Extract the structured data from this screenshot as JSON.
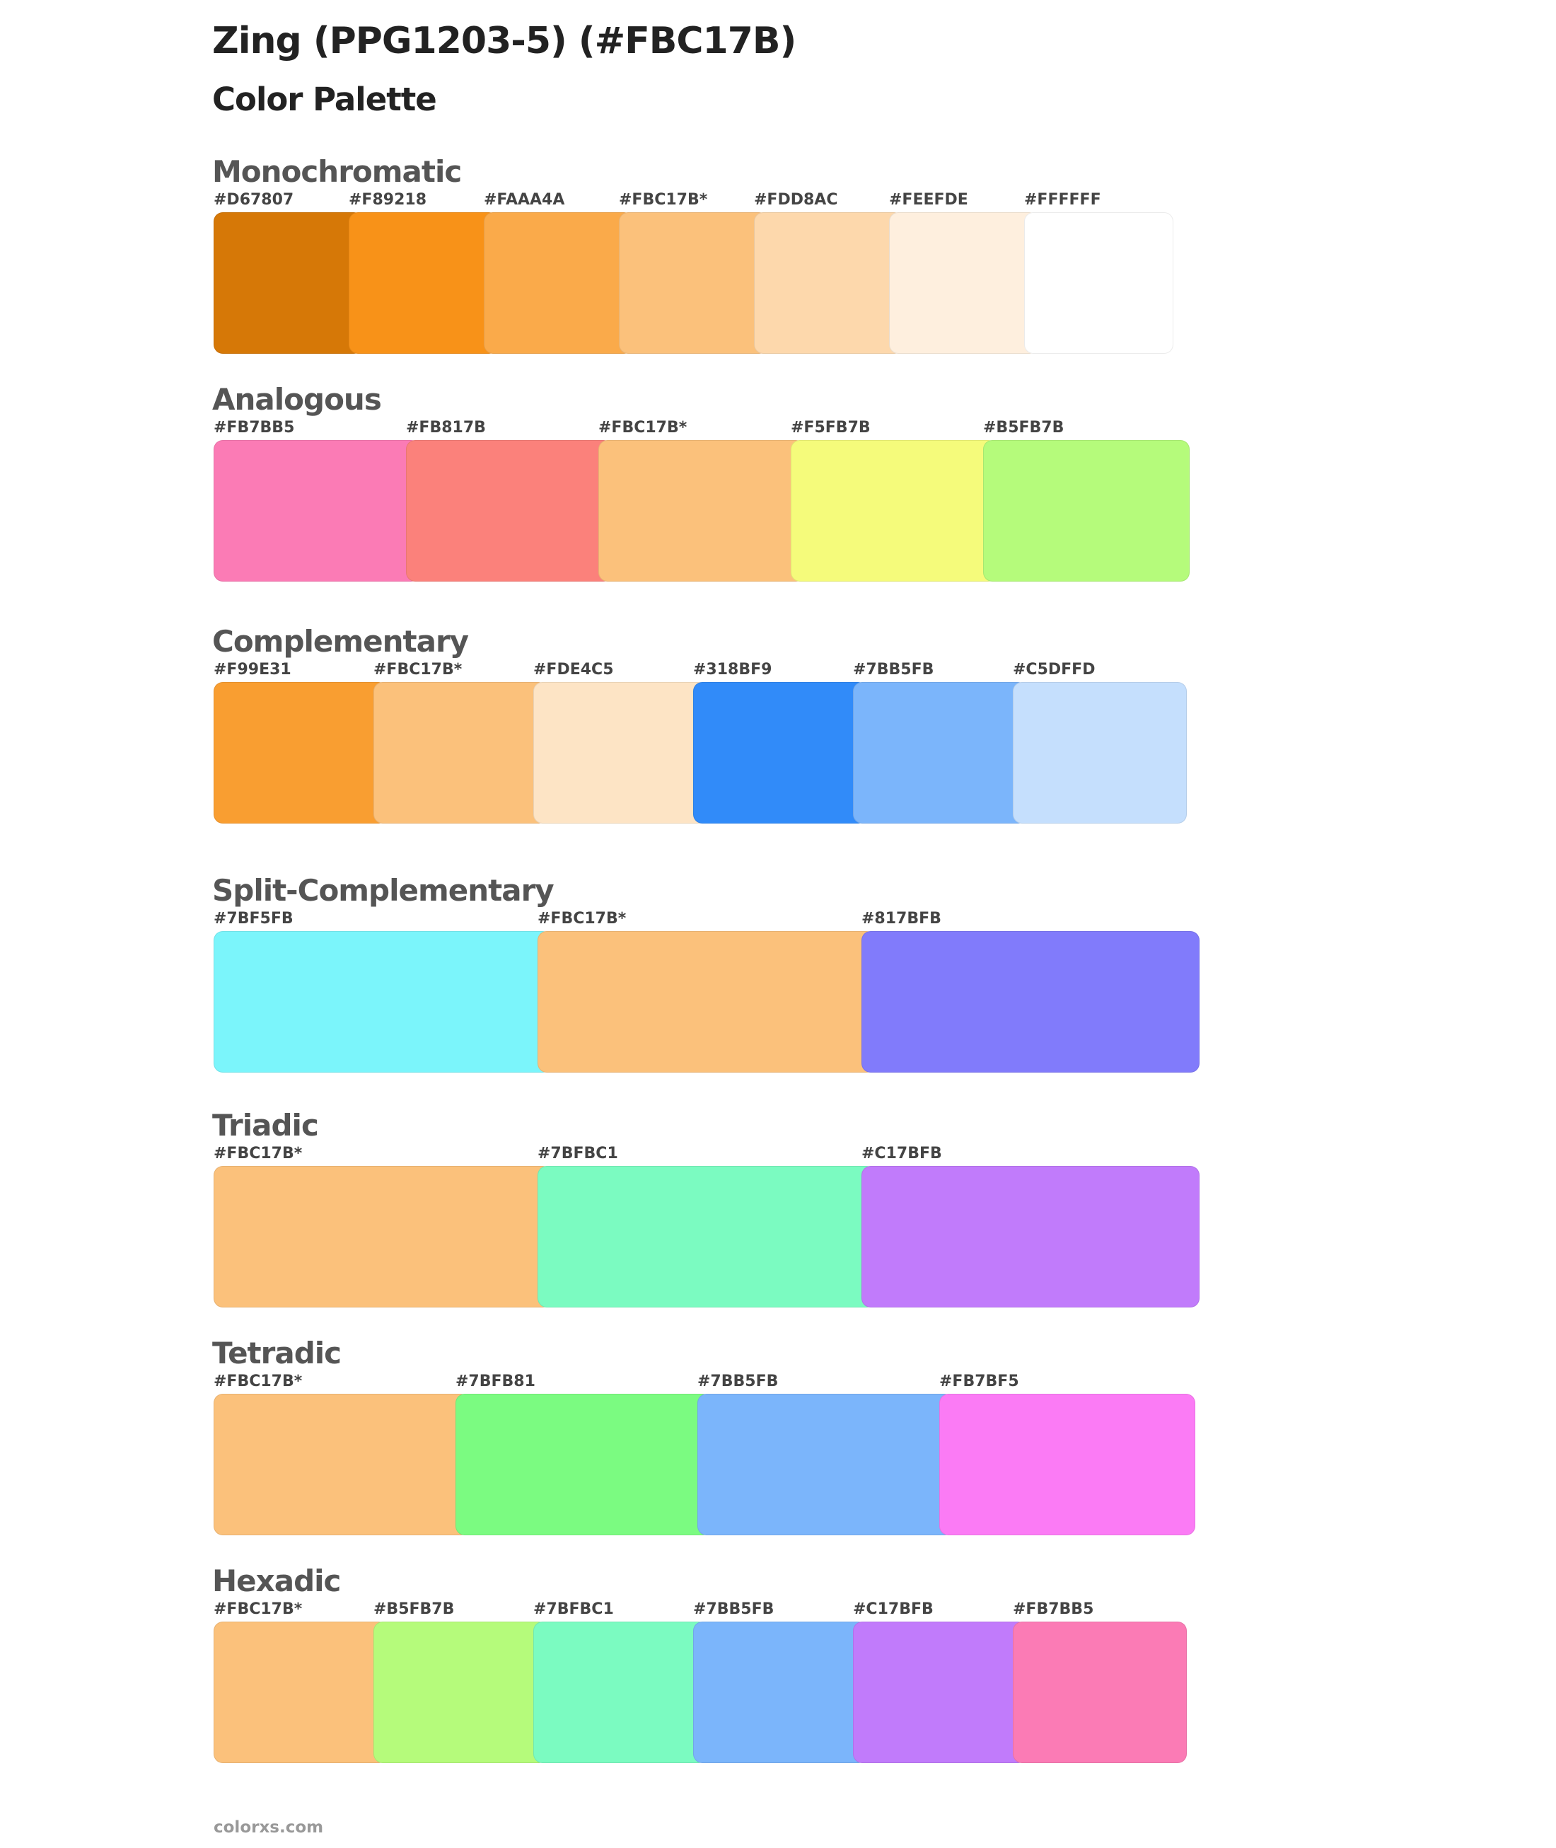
{
  "title": "Zing (PPG1203-5) (#FBC17B)",
  "subtitle": "Color Palette",
  "sections": [
    {
      "name": "Monochromatic",
      "colors": [
        {
          "label": "#D67807",
          "hex": "#D67807"
        },
        {
          "label": "#F89218",
          "hex": "#F89218"
        },
        {
          "label": "#FAAA4A",
          "hex": "#FAAA4A"
        },
        {
          "label": "#FBC17B*",
          "hex": "#FBC17B"
        },
        {
          "label": "#FDD8AC",
          "hex": "#FDD8AC"
        },
        {
          "label": "#FEEFDE",
          "hex": "#FEEFDE"
        },
        {
          "label": "#FFFFFF",
          "hex": "#FFFFFF"
        }
      ]
    },
    {
      "name": "Analogous",
      "colors": [
        {
          "label": "#FB7BB5",
          "hex": "#FB7BB5"
        },
        {
          "label": "#FB817B",
          "hex": "#FB817B"
        },
        {
          "label": "#FBC17B*",
          "hex": "#FBC17B"
        },
        {
          "label": "#F5FB7B",
          "hex": "#F5FB7B"
        },
        {
          "label": "#B5FB7B",
          "hex": "#B5FB7B"
        }
      ]
    },
    {
      "name": "Complementary",
      "colors": [
        {
          "label": "#F99E31",
          "hex": "#F99E31"
        },
        {
          "label": "#FBC17B*",
          "hex": "#FBC17B"
        },
        {
          "label": "#FDE4C5",
          "hex": "#FDE4C5"
        },
        {
          "label": "#318BF9",
          "hex": "#318BF9"
        },
        {
          "label": "#7BB5FB",
          "hex": "#7BB5FB"
        },
        {
          "label": "#C5DFFD",
          "hex": "#C5DFFD"
        }
      ]
    },
    {
      "name": "Split-Complementary",
      "colors": [
        {
          "label": "#7BF5FB",
          "hex": "#7BF5FB"
        },
        {
          "label": "#FBC17B*",
          "hex": "#FBC17B"
        },
        {
          "label": "#817BFB",
          "hex": "#817BFB"
        }
      ]
    },
    {
      "name": "Triadic",
      "colors": [
        {
          "label": "#FBC17B*",
          "hex": "#FBC17B"
        },
        {
          "label": "#7BFBC1",
          "hex": "#7BFBC1"
        },
        {
          "label": "#C17BFB",
          "hex": "#C17BFB"
        }
      ]
    },
    {
      "name": "Tetradic",
      "colors": [
        {
          "label": "#FBC17B*",
          "hex": "#FBC17B"
        },
        {
          "label": "#7BFB81",
          "hex": "#7BFB81"
        },
        {
          "label": "#7BB5FB",
          "hex": "#7BB5FB"
        },
        {
          "label": "#FB7BF5",
          "hex": "#FB7BF5"
        }
      ]
    },
    {
      "name": "Hexadic",
      "colors": [
        {
          "label": "#FBC17B*",
          "hex": "#FBC17B"
        },
        {
          "label": "#B5FB7B",
          "hex": "#B5FB7B"
        },
        {
          "label": "#7BFBC1",
          "hex": "#7BFBC1"
        },
        {
          "label": "#7BB5FB",
          "hex": "#7BB5FB"
        },
        {
          "label": "#C17BFB",
          "hex": "#C17BFB"
        },
        {
          "label": "#FB7BB5",
          "hex": "#FB7BB5"
        }
      ]
    }
  ],
  "footer": "colorxs.com"
}
